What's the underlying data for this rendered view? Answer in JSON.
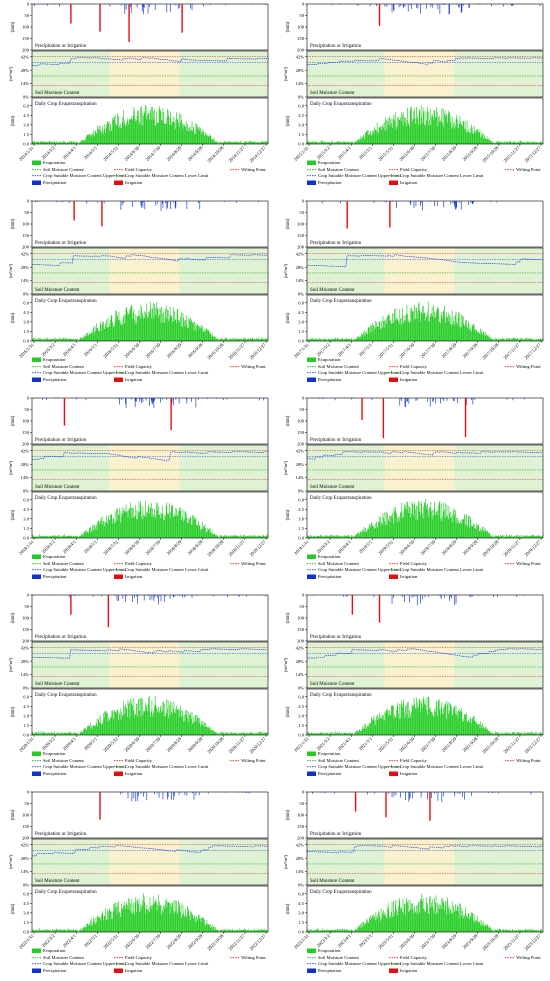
{
  "figure": {
    "panel_labels": {
      "precip": "Precipitation or Irrigation",
      "smc": "Soil Moisture Content",
      "et": "Daily Crop Evapotranspiration"
    },
    "units": {
      "mm": "(mm)",
      "vol": "(m³/m³)"
    },
    "precip_ticks": [
      "0",
      "50",
      "100",
      "150",
      "200"
    ],
    "smc_ticks": [
      "42%",
      "28%",
      "14%",
      "0%"
    ],
    "et_ticks": [
      "6.0",
      "4.5",
      "3.0",
      "1.5",
      "0.0"
    ],
    "legend": [
      {
        "label": "Evaporation",
        "kind": "patch",
        "color": "#22cc22"
      },
      {
        "label": "Soil Moisture Content",
        "kind": "dash",
        "color": "#22aa22"
      },
      {
        "label": "Field Capacity",
        "kind": "dash",
        "color": "#dd2222"
      },
      {
        "label": "Wilting Point",
        "kind": "dash",
        "color": "#dd2222"
      },
      {
        "label": "Crop Suitable Moisture Content Upper Limit",
        "kind": "dash",
        "color": "#2244dd"
      },
      {
        "label": "Crop Suitable Moisture Content Lower Limit",
        "kind": "dash",
        "color": "#22aa22"
      },
      {
        "label": "Precipitation",
        "kind": "patch",
        "color": "#1133cc"
      },
      {
        "label": "Irrigation",
        "kind": "patch",
        "color": "#dd1111"
      }
    ],
    "colors": {
      "precip": "#1133cc",
      "irrig": "#dd1111",
      "et": "#22cc22",
      "band_green": "#dff3d4",
      "band_yellow": "#faf2cf",
      "fc": "#dd2222",
      "wp": "#dd2222",
      "upper": "#2244dd",
      "lower": "#22aa22",
      "smc": "#22aa22"
    }
  },
  "chart_data": [
    {
      "type": "bar",
      "year": 2014,
      "x_ticks": [
        "2014/1/31",
        "2014/3/2",
        "2014/4/1",
        "2014/5/1",
        "2014/5/31",
        "2014/6/30",
        "2014/7/30",
        "2014/8/29",
        "2014/9/28",
        "2014/10/28",
        "2014/11/27",
        "2014/12/27"
      ],
      "irrigation_mm": [
        {
          "day": 60,
          "mm": 85
        },
        {
          "day": 105,
          "mm": 120
        },
        {
          "day": 150,
          "mm": 165
        },
        {
          "day": 232,
          "mm": 125
        }
      ]
    },
    {
      "type": "bar",
      "year": 2015,
      "x_ticks": [
        "2015/1/31",
        "2015/3/2",
        "2015/4/1",
        "2015/5/1",
        "2015/5/31",
        "2015/6/30",
        "2015/7/30",
        "2015/8/29",
        "2015/9/28",
        "2015/10/28",
        "2015/11/27",
        "2015/12/27"
      ],
      "irrigation_mm": [
        {
          "day": 112,
          "mm": 95
        }
      ]
    },
    {
      "type": "bar",
      "year": 2016,
      "x_ticks": [
        "2016/1/31",
        "2016/3/2",
        "2016/4/1",
        "2016/5/1",
        "2016/5/31",
        "2016/6/30",
        "2016/7/30",
        "2016/8/29",
        "2016/9/28",
        "2016/10/28",
        "2016/11/27",
        "2016/12/27"
      ],
      "irrigation_mm": [
        {
          "day": 65,
          "mm": 85
        },
        {
          "day": 108,
          "mm": 110
        }
      ]
    },
    {
      "type": "bar",
      "year": 2017,
      "x_ticks": [
        "2017/1/31",
        "2017/3/2",
        "2017/4/1",
        "2017/5/1",
        "2017/5/31",
        "2017/6/30",
        "2017/7/30",
        "2017/8/29",
        "2017/9/28",
        "2017/10/28",
        "2017/11/27",
        "2017/12/27"
      ],
      "irrigation_mm": [
        {
          "day": 62,
          "mm": 120
        },
        {
          "day": 128,
          "mm": 115
        }
      ]
    },
    {
      "type": "bar",
      "year": 2018,
      "x_ticks": [
        "2018/1/31",
        "2018/3/2",
        "2018/4/1",
        "2018/5/1",
        "2018/5/31",
        "2018/6/30",
        "2018/7/30",
        "2018/8/29",
        "2018/9/28",
        "2018/10/28",
        "2018/11/27",
        "2018/12/27"
      ],
      "irrigation_mm": [
        {
          "day": 50,
          "mm": 120
        },
        {
          "day": 215,
          "mm": 140
        }
      ]
    },
    {
      "type": "bar",
      "year": 2019,
      "x_ticks": [
        "2019/1/31",
        "2019/3/2",
        "2019/4/1",
        "2019/5/1",
        "2019/5/31",
        "2019/6/30",
        "2019/7/30",
        "2019/8/29",
        "2019/9/28",
        "2019/10/28",
        "2019/11/27",
        "2019/12/27"
      ],
      "irrigation_mm": [
        {
          "day": 85,
          "mm": 95
        },
        {
          "day": 118,
          "mm": 175
        },
        {
          "day": 245,
          "mm": 170
        }
      ]
    },
    {
      "type": "bar",
      "year": 2020,
      "x_ticks": [
        "2020/1/31",
        "2020/3/2",
        "2020/4/1",
        "2020/5/1",
        "2020/5/31",
        "2020/6/30",
        "2020/7/30",
        "2020/8/29",
        "2020/9/28",
        "2020/10/28",
        "2020/11/27",
        "2020/12/27"
      ],
      "irrigation_mm": [
        {
          "day": 60,
          "mm": 85
        },
        {
          "day": 118,
          "mm": 140
        }
      ]
    },
    {
      "type": "bar",
      "year": 2021,
      "x_ticks": [
        "2021/1/31",
        "2021/3/2",
        "2021/4/1",
        "2021/5/1",
        "2021/5/31",
        "2021/6/30",
        "2021/7/30",
        "2021/8/29",
        "2021/9/28",
        "2021/10/28",
        "2021/11/27",
        "2021/12/27"
      ],
      "irrigation_mm": [
        {
          "day": 70,
          "mm": 85
        },
        {
          "day": 112,
          "mm": 120
        }
      ]
    },
    {
      "type": "bar",
      "year": 2022,
      "x_ticks": [
        "2022/1/31",
        "2022/3/2",
        "2022/4/1",
        "2022/5/1",
        "2022/5/31",
        "2022/6/30",
        "2022/7/30",
        "2022/8/29",
        "2022/9/28",
        "2022/10/28",
        "2022/11/27",
        "2022/12/27"
      ],
      "irrigation_mm": [
        {
          "day": 105,
          "mm": 120
        }
      ]
    },
    {
      "type": "bar",
      "year": 2023,
      "x_ticks": [
        "2023/1/31",
        "2023/3/2",
        "2023/4/1",
        "2023/5/1",
        "2023/5/31",
        "2023/6/30",
        "2023/7/30",
        "2023/8/29",
        "2023/9/28",
        "2023/10/28",
        "2023/11/27",
        "2023/12/27"
      ],
      "irrigation_mm": [
        {
          "day": 75,
          "mm": 85
        },
        {
          "day": 122,
          "mm": 110
        },
        {
          "day": 190,
          "mm": 125
        }
      ]
    }
  ]
}
